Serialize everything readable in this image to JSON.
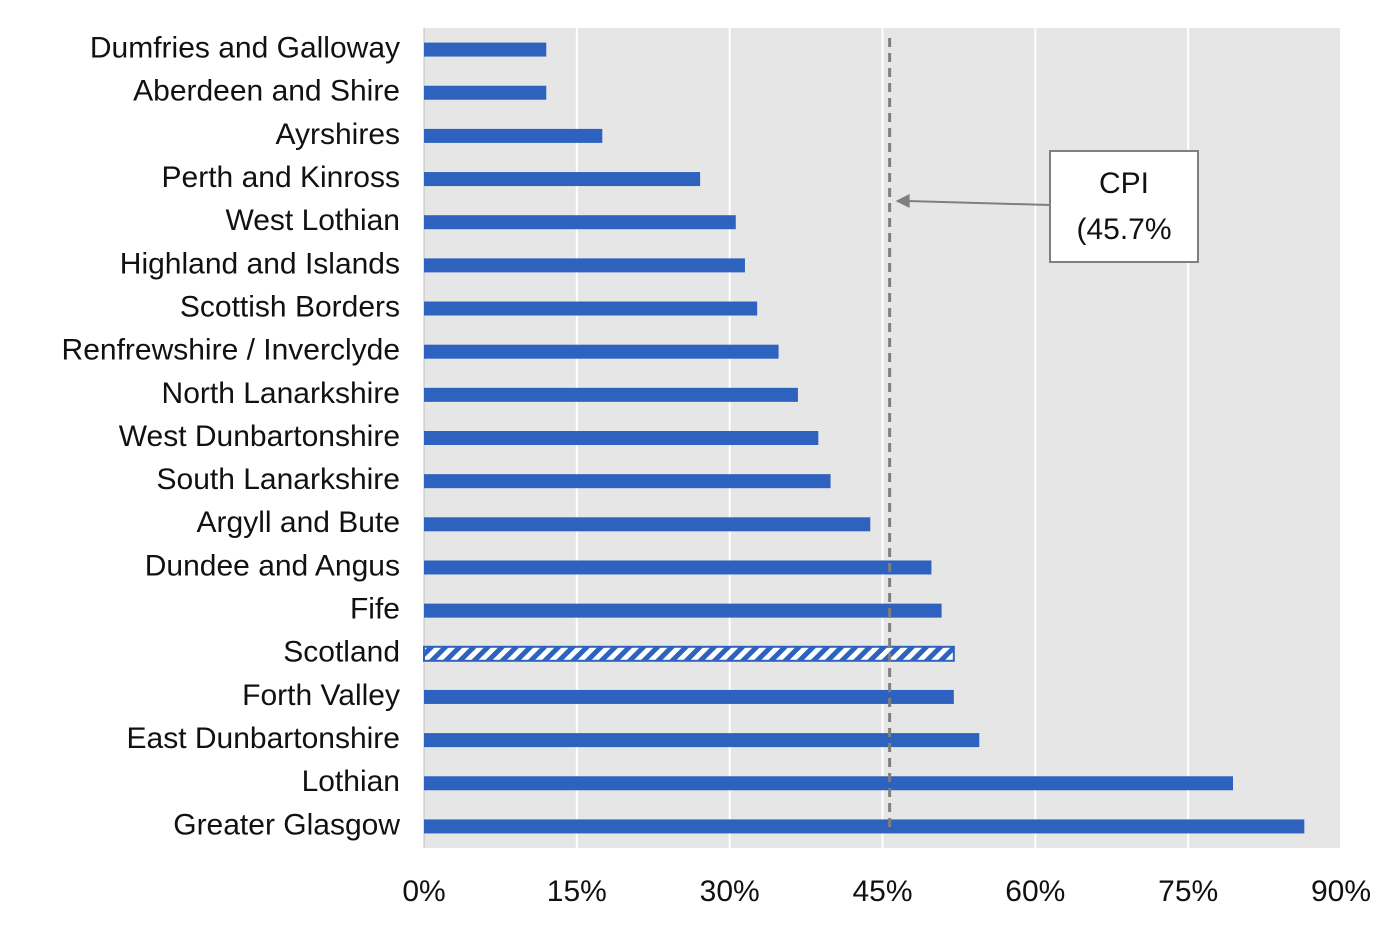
{
  "chart_data": {
    "type": "bar",
    "orientation": "horizontal",
    "categories": [
      "Dumfries and Galloway",
      "Aberdeen and Shire",
      "Ayrshires",
      "Perth and Kinross",
      "West Lothian",
      "Highland and Islands",
      "Scottish Borders",
      "Renfrewshire / Inverclyde",
      "North Lanarkshire",
      "West Dunbartonshire",
      "South Lanarkshire",
      "Argyll and Bute",
      "Dundee and Angus",
      "Fife",
      "Scotland",
      "Forth Valley",
      "East Dunbartonshire",
      "Lothian",
      "Greater Glasgow"
    ],
    "values": [
      12,
      12,
      17.5,
      27.1,
      30.6,
      31.5,
      32.7,
      34.8,
      36.7,
      38.7,
      39.9,
      43.8,
      49.8,
      50.8,
      52,
      52,
      54.5,
      79.4,
      86.4
    ],
    "color": "#2e62bf",
    "hatch_category": "Scotland",
    "xlim": [
      0,
      90
    ],
    "xticks": [
      {
        "value": 0,
        "label": "0%"
      },
      {
        "value": 15,
        "label": "15%"
      },
      {
        "value": 30,
        "label": "30%"
      },
      {
        "value": 45,
        "label": "45%"
      },
      {
        "value": 60,
        "label": "60%"
      },
      {
        "value": 75,
        "label": "75%"
      },
      {
        "value": 90,
        "label": "90%"
      }
    ],
    "grid": true,
    "reference_line": {
      "value": 45.7,
      "label_lines": [
        "CPI",
        "(45.7%"
      ]
    }
  }
}
